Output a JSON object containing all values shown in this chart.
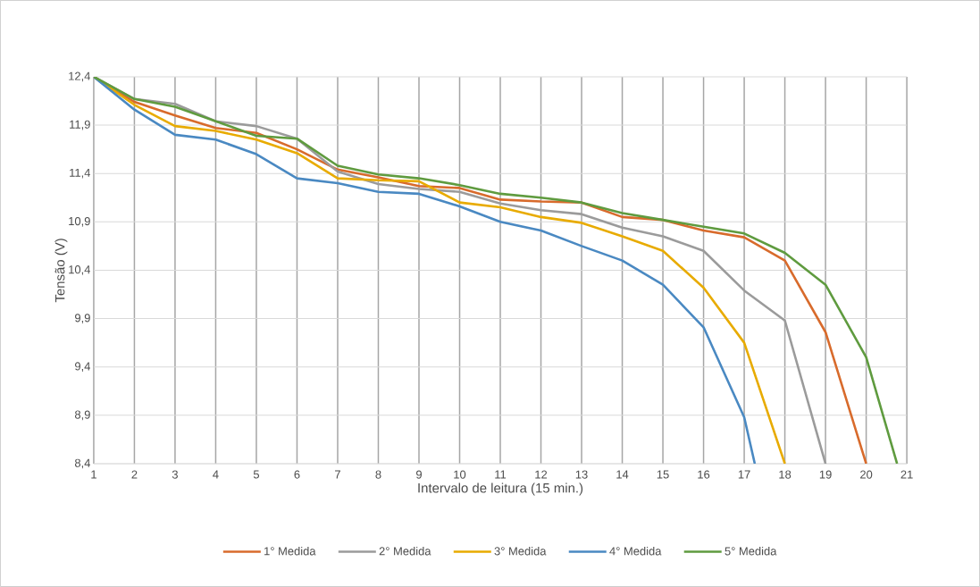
{
  "chart_data": {
    "type": "line",
    "xlabel": "Intervalo de leitura (15 min.)",
    "ylabel": "Tensão (V)",
    "xlim": [
      1,
      21
    ],
    "xticks": [
      1,
      2,
      3,
      4,
      5,
      6,
      7,
      8,
      9,
      10,
      11,
      12,
      13,
      14,
      15,
      16,
      17,
      18,
      19,
      20,
      21
    ],
    "ylim": [
      8.4,
      12.4
    ],
    "yticks": [
      {
        "value": 8.4,
        "label": "8,4"
      },
      {
        "value": 8.9,
        "label": "8,9"
      },
      {
        "value": 9.4,
        "label": "9,4"
      },
      {
        "value": 9.9,
        "label": "9,9"
      },
      {
        "value": 10.4,
        "label": "10,4"
      },
      {
        "value": 10.9,
        "label": "10,9"
      },
      {
        "value": 11.4,
        "label": "11,4"
      },
      {
        "value": 11.9,
        "label": "11,9"
      },
      {
        "value": 12.4,
        "label": "12,4"
      }
    ],
    "grid": true,
    "legend": "bottom",
    "marker": "none",
    "line_style": "solid",
    "series": [
      {
        "name": "1° Medida",
        "color": "#d86b2c",
        "x": [
          1,
          2,
          3,
          4,
          5,
          6,
          7,
          8,
          9,
          10,
          11,
          12,
          13,
          14,
          15,
          16,
          17,
          18,
          19,
          20
        ],
        "values": [
          12.4,
          12.14,
          12.0,
          11.87,
          11.82,
          11.65,
          11.44,
          11.36,
          11.27,
          11.25,
          11.13,
          11.11,
          11.1,
          10.95,
          10.92,
          10.81,
          10.74,
          10.5,
          9.76,
          8.4
        ]
      },
      {
        "name": "2° Medida",
        "color": "#9b9b9b",
        "x": [
          1,
          2,
          3,
          4,
          5,
          6,
          7,
          8,
          9,
          10,
          11,
          12,
          13,
          14,
          15,
          16,
          17,
          18,
          19
        ],
        "values": [
          12.4,
          12.17,
          12.12,
          11.94,
          11.89,
          11.76,
          11.42,
          11.29,
          11.24,
          11.21,
          11.09,
          11.02,
          10.98,
          10.84,
          10.75,
          10.6,
          10.19,
          9.88,
          8.4
        ]
      },
      {
        "name": "3° Medida",
        "color": "#e8ab00",
        "x": [
          1,
          2,
          3,
          4,
          5,
          6,
          7,
          8,
          9,
          10,
          11,
          12,
          13,
          14,
          15,
          16,
          17,
          18
        ],
        "values": [
          12.4,
          12.11,
          11.89,
          11.84,
          11.75,
          11.61,
          11.35,
          11.33,
          11.32,
          11.1,
          11.05,
          10.95,
          10.89,
          10.75,
          10.6,
          10.22,
          9.65,
          8.4
        ]
      },
      {
        "name": "4° Medida",
        "color": "#4a89c2",
        "x": [
          1,
          2,
          3,
          4,
          5,
          6,
          7,
          8,
          9,
          10,
          11,
          12,
          13,
          14,
          15,
          16,
          17,
          17.26
        ],
        "values": [
          12.4,
          12.06,
          11.8,
          11.75,
          11.6,
          11.35,
          11.3,
          11.21,
          11.19,
          11.06,
          10.9,
          10.81,
          10.65,
          10.5,
          10.25,
          9.81,
          8.88,
          8.4
        ]
      },
      {
        "name": "5° Medida",
        "color": "#5f9b3f",
        "x": [
          1,
          2,
          3,
          4,
          5,
          6,
          7,
          8,
          9,
          10,
          11,
          12,
          13,
          14,
          15,
          16,
          17,
          18,
          19,
          20,
          20.76
        ],
        "values": [
          12.4,
          12.17,
          12.09,
          11.94,
          11.79,
          11.76,
          11.48,
          11.39,
          11.35,
          11.28,
          11.19,
          11.15,
          11.1,
          10.99,
          10.92,
          10.85,
          10.78,
          10.58,
          10.25,
          9.5,
          8.4
        ]
      }
    ]
  }
}
